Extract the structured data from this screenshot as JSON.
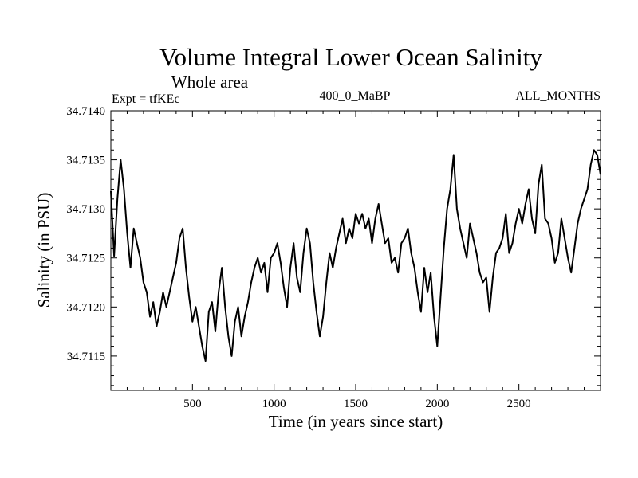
{
  "chart_data": {
    "type": "line",
    "title": "Volume Integral Lower Ocean Salinity",
    "subtitle": "Whole area",
    "header_left": "Expt = tfKEc",
    "header_center": "400_0_MaBP",
    "header_right": "ALL_MONTHS",
    "xlabel": "Time (in years since start)",
    "ylabel": "Salinity (in PSU)",
    "xlim": [
      0,
      3000
    ],
    "ylim": [
      34.71115,
      34.714
    ],
    "xticks_major": [
      500,
      1000,
      1500,
      2000,
      2500
    ],
    "xtick_labels": [
      "500",
      "1000",
      "1500",
      "2000",
      "2500"
    ],
    "yticks_major": [
      34.7115,
      34.712,
      34.7125,
      34.713,
      34.7135,
      34.714
    ],
    "ytick_labels": [
      "34.7115",
      "34.7120",
      "34.7125",
      "34.7130",
      "34.7135",
      "34.7140"
    ],
    "grid": false,
    "series": [
      {
        "color": "#000000",
        "x": [
          0,
          20,
          40,
          60,
          80,
          100,
          120,
          140,
          160,
          180,
          200,
          220,
          240,
          260,
          280,
          300,
          320,
          340,
          360,
          380,
          400,
          420,
          440,
          460,
          480,
          500,
          520,
          540,
          560,
          580,
          600,
          620,
          640,
          660,
          680,
          700,
          720,
          740,
          760,
          780,
          800,
          820,
          840,
          860,
          880,
          900,
          920,
          940,
          960,
          980,
          1000,
          1020,
          1040,
          1060,
          1080,
          1100,
          1120,
          1140,
          1160,
          1180,
          1200,
          1220,
          1240,
          1260,
          1280,
          1300,
          1320,
          1340,
          1360,
          1380,
          1400,
          1420,
          1440,
          1460,
          1480,
          1500,
          1520,
          1540,
          1560,
          1580,
          1600,
          1620,
          1640,
          1660,
          1680,
          1700,
          1720,
          1740,
          1760,
          1780,
          1800,
          1820,
          1840,
          1860,
          1880,
          1900,
          1920,
          1940,
          1960,
          1980,
          2000,
          2020,
          2040,
          2060,
          2080,
          2100,
          2120,
          2140,
          2160,
          2180,
          2200,
          2220,
          2240,
          2260,
          2280,
          2300,
          2320,
          2340,
          2360,
          2380,
          2400,
          2420,
          2440,
          2460,
          2480,
          2500,
          2520,
          2540,
          2560,
          2580,
          2600,
          2620,
          2640,
          2660,
          2680,
          2700,
          2720,
          2740,
          2760,
          2780,
          2800,
          2820,
          2840,
          2860,
          2880,
          2900,
          2920,
          2940,
          2960,
          2980,
          3000
        ],
        "values": [
          34.71318,
          34.71252,
          34.7131,
          34.7135,
          34.7132,
          34.71275,
          34.7124,
          34.7128,
          34.71265,
          34.7125,
          34.71225,
          34.71215,
          34.7119,
          34.71205,
          34.7118,
          34.71195,
          34.71215,
          34.712,
          34.71215,
          34.7123,
          34.71245,
          34.7127,
          34.7128,
          34.7124,
          34.7121,
          34.71185,
          34.712,
          34.7118,
          34.7116,
          34.71145,
          34.71195,
          34.71205,
          34.71175,
          34.71215,
          34.7124,
          34.712,
          34.7117,
          34.7115,
          34.71185,
          34.712,
          34.7117,
          34.7119,
          34.71205,
          34.71225,
          34.7124,
          34.7125,
          34.71235,
          34.71245,
          34.71215,
          34.7125,
          34.71255,
          34.71265,
          34.71245,
          34.7122,
          34.712,
          34.7124,
          34.71265,
          34.7123,
          34.71215,
          34.71255,
          34.7128,
          34.71265,
          34.71225,
          34.71195,
          34.7117,
          34.7119,
          34.71225,
          34.71255,
          34.7124,
          34.7126,
          34.71275,
          34.7129,
          34.71265,
          34.7128,
          34.7127,
          34.71295,
          34.71285,
          34.71295,
          34.7128,
          34.7129,
          34.71265,
          34.7129,
          34.71305,
          34.71285,
          34.71265,
          34.7127,
          34.71245,
          34.7125,
          34.71235,
          34.71265,
          34.7127,
          34.7128,
          34.71255,
          34.7124,
          34.71215,
          34.71195,
          34.7124,
          34.71215,
          34.71235,
          34.7119,
          34.7116,
          34.7121,
          34.7126,
          34.713,
          34.7132,
          34.71355,
          34.713,
          34.7128,
          34.71265,
          34.7125,
          34.71285,
          34.7127,
          34.71255,
          34.71235,
          34.71225,
          34.7123,
          34.71195,
          34.7123,
          34.71255,
          34.7126,
          34.7127,
          34.71295,
          34.71255,
          34.71265,
          34.71285,
          34.713,
          34.71285,
          34.71305,
          34.7132,
          34.7129,
          34.71275,
          34.71325,
          34.71345,
          34.7129,
          34.71285,
          34.7127,
          34.71245,
          34.71255,
          34.7129,
          34.7127,
          34.7125,
          34.71235,
          34.7126,
          34.71285,
          34.713,
          34.7131,
          34.7132,
          34.71345,
          34.7136,
          34.71355,
          34.71335
        ]
      }
    ]
  }
}
